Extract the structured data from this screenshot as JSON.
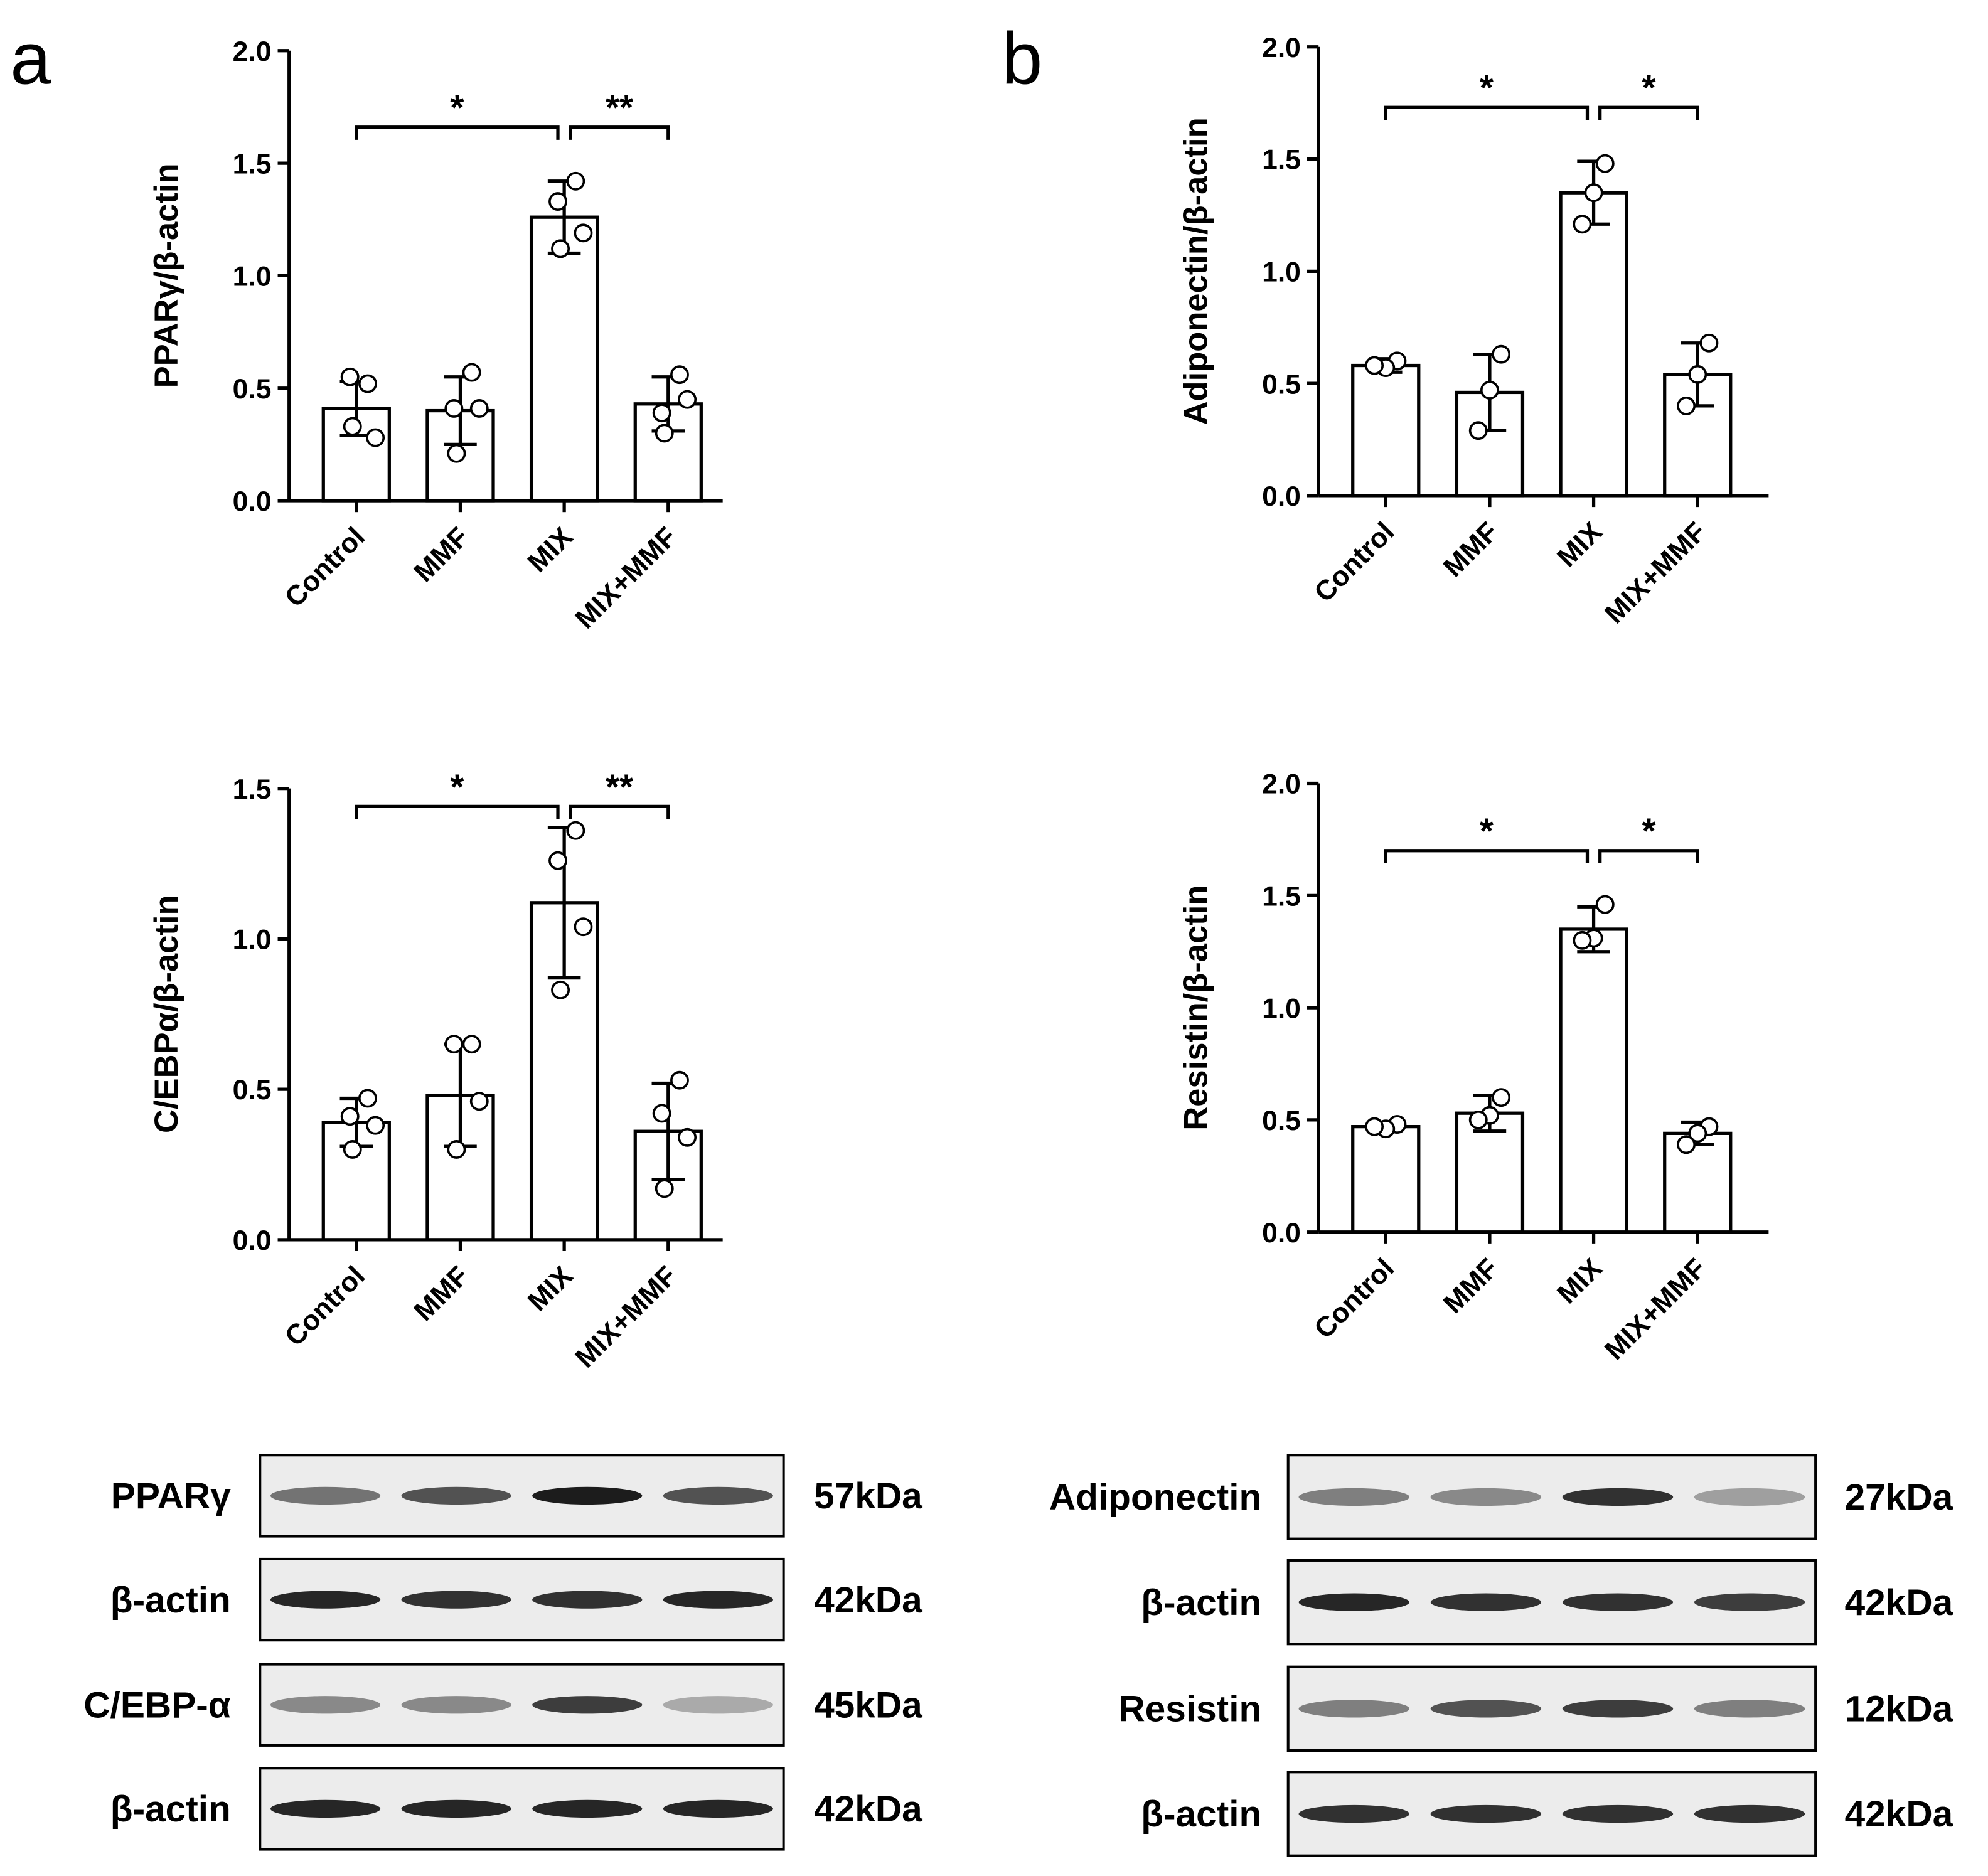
{
  "panel_labels": [
    "a",
    "b"
  ],
  "chart_data": [
    {
      "type": "bar",
      "y_label": "PPARγ/β-actin",
      "categories": [
        "Control",
        "MMF",
        "MIX",
        "MIX+MMF"
      ],
      "values": [
        0.41,
        0.4,
        1.26,
        0.43
      ],
      "errors": [
        0.12,
        0.15,
        0.16,
        0.12
      ],
      "points": [
        [
          0.52,
          0.55,
          0.33,
          0.28
        ],
        [
          0.57,
          0.41,
          0.21,
          0.41
        ],
        [
          1.42,
          1.33,
          1.12,
          1.19
        ],
        [
          0.56,
          0.39,
          0.3,
          0.45
        ]
      ],
      "color": "#ffffff",
      "edgecolor": "#000000",
      "ylim": [
        0,
        2
      ],
      "yticks": [
        {
          "value": 0,
          "label": "0.0"
        },
        {
          "value": 0.5,
          "label": "0.5"
        },
        {
          "value": 1,
          "label": "1.0"
        },
        {
          "value": 1.5,
          "label": "1.5"
        },
        {
          "value": 2,
          "label": "2.0"
        }
      ],
      "significance": [
        {
          "pair": [
            "Control",
            "MIX"
          ],
          "label": "*"
        },
        {
          "pair": [
            "MIX",
            "MIX+MMF"
          ],
          "label": "**"
        }
      ]
    },
    {
      "type": "bar",
      "y_label": "C/EBPα/β-actin",
      "categories": [
        "Control",
        "MMF",
        "MIX",
        "MIX+MMF"
      ],
      "values": [
        0.39,
        0.48,
        1.12,
        0.36
      ],
      "errors": [
        0.08,
        0.17,
        0.25,
        0.16
      ],
      "points": [
        [
          0.47,
          0.41,
          0.3,
          0.38
        ],
        [
          0.65,
          0.65,
          0.3,
          0.46
        ],
        [
          1.36,
          1.26,
          0.83,
          1.04
        ],
        [
          0.53,
          0.42,
          0.17,
          0.34
        ]
      ],
      "color": "#ffffff",
      "edgecolor": "#000000",
      "ylim": [
        0,
        1.5
      ],
      "yticks": [
        {
          "value": 0,
          "label": "0.0"
        },
        {
          "value": 0.5,
          "label": "0.5"
        },
        {
          "value": 1,
          "label": "1.0"
        },
        {
          "value": 1.5,
          "label": "1.5"
        }
      ],
      "significance": [
        {
          "pair": [
            "Control",
            "MIX"
          ],
          "label": "*"
        },
        {
          "pair": [
            "MIX",
            "MIX+MMF"
          ],
          "label": "**"
        }
      ]
    },
    {
      "type": "bar",
      "y_label": "Adiponectin/β-actin",
      "categories": [
        "Control",
        "MMF",
        "MIX",
        "MIX+MMF"
      ],
      "values": [
        0.58,
        0.46,
        1.35,
        0.54
      ],
      "errors": [
        0.03,
        0.17,
        0.14,
        0.14
      ],
      "points": [
        [
          0.6,
          0.57,
          0.58
        ],
        [
          0.63,
          0.47,
          0.29
        ],
        [
          1.48,
          1.35,
          1.21
        ],
        [
          0.68,
          0.54,
          0.4
        ]
      ],
      "color": "#ffffff",
      "edgecolor": "#000000",
      "ylim": [
        0,
        2
      ],
      "yticks": [
        {
          "value": 0,
          "label": "0.0"
        },
        {
          "value": 0.5,
          "label": "0.5"
        },
        {
          "value": 1,
          "label": "1.0"
        },
        {
          "value": 1.5,
          "label": "1.5"
        },
        {
          "value": 2,
          "label": "2.0"
        }
      ],
      "significance": [
        {
          "pair": [
            "Control",
            "MIX"
          ],
          "label": "*"
        },
        {
          "pair": [
            "MIX",
            "MIX+MMF"
          ],
          "label": "*"
        }
      ]
    },
    {
      "type": "bar",
      "y_label": "Resistin/β-actin",
      "categories": [
        "Control",
        "MMF",
        "MIX",
        "MIX+MMF"
      ],
      "values": [
        0.47,
        0.53,
        1.35,
        0.44
      ],
      "errors": [
        0.02,
        0.08,
        0.1,
        0.05
      ],
      "points": [
        [
          0.48,
          0.46,
          0.47
        ],
        [
          0.6,
          0.52,
          0.5
        ],
        [
          1.46,
          1.31,
          1.3
        ],
        [
          0.47,
          0.44,
          0.39
        ]
      ],
      "color": "#ffffff",
      "edgecolor": "#000000",
      "ylim": [
        0,
        2
      ],
      "yticks": [
        {
          "value": 0,
          "label": "0.0"
        },
        {
          "value": 0.5,
          "label": "0.5"
        },
        {
          "value": 1,
          "label": "1.0"
        },
        {
          "value": 1.5,
          "label": "1.5"
        },
        {
          "value": 2,
          "label": "2.0"
        }
      ],
      "significance": [
        {
          "pair": [
            "Control",
            "MIX"
          ],
          "label": "*"
        },
        {
          "pair": [
            "MIX",
            "MIX+MMF"
          ],
          "label": "*"
        }
      ]
    }
  ],
  "blots": [
    {
      "rows": [
        {
          "label": "PPARγ",
          "size": "57kDa"
        },
        {
          "label": "β-actin",
          "size": "42kDa"
        },
        {
          "label": "C/EBP-α",
          "size": "45kDa"
        },
        {
          "label": "β-actin",
          "size": "42kDa"
        }
      ]
    },
    {
      "rows": [
        {
          "label": "Adiponectin",
          "size": "27kDa"
        },
        {
          "label": "β-actin",
          "size": "42kDa"
        },
        {
          "label": "Resistin",
          "size": "12kDa"
        },
        {
          "label": "β-actin",
          "size": "42kDa"
        }
      ]
    }
  ]
}
